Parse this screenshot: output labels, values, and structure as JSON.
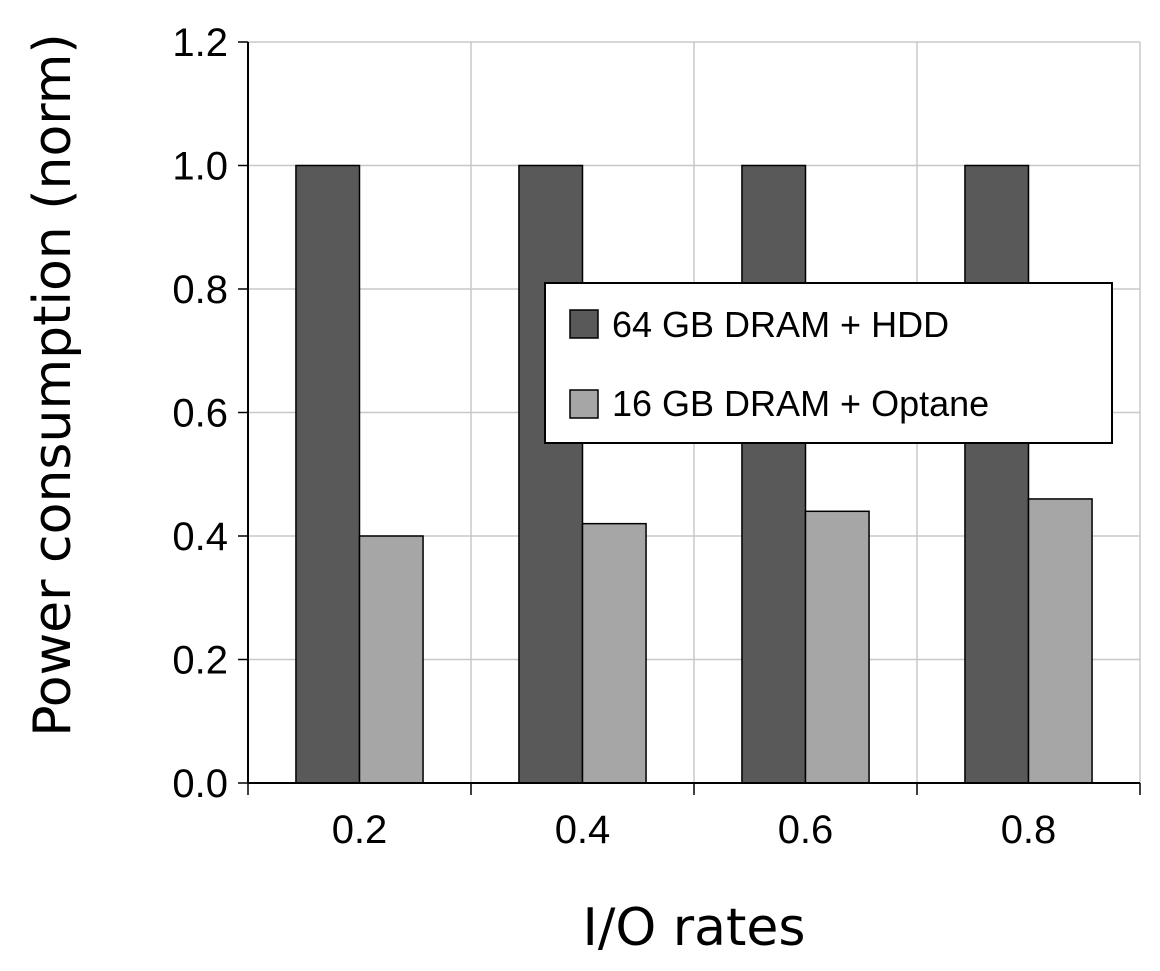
{
  "chart_data": {
    "type": "bar",
    "xlabel": "I/O rates",
    "ylabel": "Power consumption (norm)",
    "categories": [
      "0.2",
      "0.4",
      "0.6",
      "0.8"
    ],
    "series": [
      {
        "name": "64 GB DRAM + HDD",
        "values": [
          1.0,
          1.0,
          1.0,
          1.0
        ],
        "color": "#595959"
      },
      {
        "name": "16 GB DRAM + Optane",
        "values": [
          0.4,
          0.42,
          0.44,
          0.46
        ],
        "color": "#a6a6a6"
      }
    ],
    "ylim": [
      0,
      1.2
    ],
    "yticks": [
      "0.0",
      "0.2",
      "0.4",
      "0.6",
      "0.8",
      "1.0",
      "1.2"
    ],
    "grid": true,
    "legend_position": "upper-right"
  }
}
